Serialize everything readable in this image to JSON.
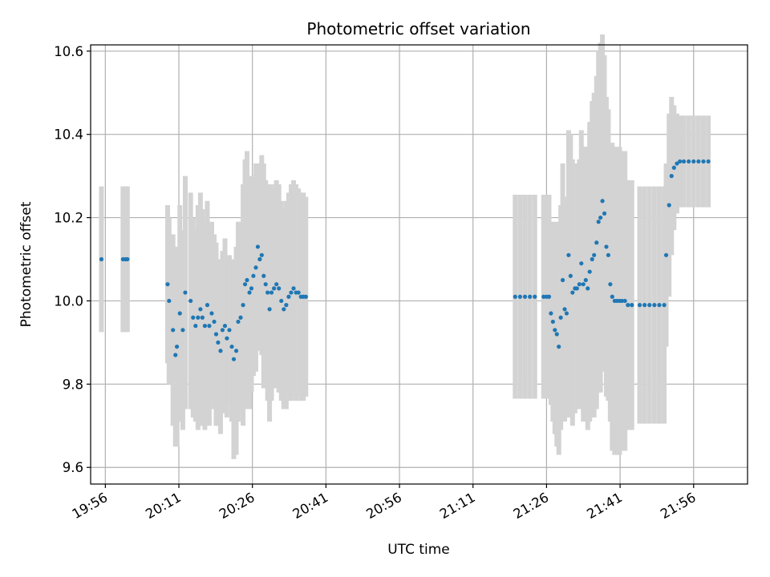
{
  "chart_data": {
    "type": "scatter",
    "title": "Photometric offset variation",
    "xlabel": "UTC time",
    "ylabel": "Photometric offset",
    "x_unit": "minutes after 19:56 UTC",
    "xlim": [
      "19:53",
      "22:07"
    ],
    "ylim": [
      9.56,
      10.615
    ],
    "grid": true,
    "x_ticks": [
      "19:56",
      "20:11",
      "20:26",
      "20:41",
      "20:56",
      "21:11",
      "21:26",
      "21:41",
      "21:56"
    ],
    "y_ticks": [
      "9.6",
      "9.8",
      "10.0",
      "10.2",
      "10.4",
      "10.6"
    ],
    "colors": {
      "points": "#1f77b4",
      "error_bars": "#d3d3d3",
      "grid": "#b0b0b0"
    },
    "points": [
      [
        -0.8,
        10.1,
        0.175
      ],
      [
        3.6,
        10.1,
        0.175
      ],
      [
        4.1,
        10.1,
        0.175
      ],
      [
        4.5,
        10.1,
        0.175
      ],
      [
        12.7,
        10.04,
        0.19
      ],
      [
        13.0,
        10.0,
        0.2
      ],
      [
        13.8,
        9.93,
        0.23
      ],
      [
        14.3,
        9.87,
        0.22
      ],
      [
        14.6,
        9.89,
        0.24
      ],
      [
        15.2,
        9.97,
        0.26
      ],
      [
        15.8,
        9.93,
        0.24
      ],
      [
        16.3,
        10.02,
        0.28
      ],
      [
        17.4,
        10.0,
        0.26
      ],
      [
        17.9,
        9.96,
        0.24
      ],
      [
        18.4,
        9.94,
        0.23
      ],
      [
        18.9,
        9.96,
        0.27
      ],
      [
        19.4,
        9.98,
        0.28
      ],
      [
        19.8,
        9.96,
        0.26
      ],
      [
        20.3,
        9.94,
        0.25
      ],
      [
        20.8,
        9.99,
        0.25
      ],
      [
        21.2,
        9.94,
        0.24
      ],
      [
        21.7,
        9.97,
        0.22
      ],
      [
        22.2,
        9.95,
        0.21
      ],
      [
        22.6,
        9.92,
        0.22
      ],
      [
        23.0,
        9.9,
        0.2
      ],
      [
        23.5,
        9.88,
        0.2
      ],
      [
        23.9,
        9.93,
        0.19
      ],
      [
        24.4,
        9.94,
        0.21
      ],
      [
        24.8,
        9.91,
        0.19
      ],
      [
        25.3,
        9.93,
        0.18
      ],
      [
        25.8,
        9.89,
        0.18
      ],
      [
        26.2,
        9.86,
        0.24
      ],
      [
        26.7,
        9.88,
        0.25
      ],
      [
        27.1,
        9.95,
        0.24
      ],
      [
        27.6,
        9.96,
        0.23
      ],
      [
        28.1,
        9.99,
        0.29
      ],
      [
        28.5,
        10.04,
        0.3
      ],
      [
        28.9,
        10.05,
        0.31
      ],
      [
        29.4,
        10.02,
        0.28
      ],
      [
        29.8,
        10.03,
        0.25
      ],
      [
        30.2,
        10.06,
        0.24
      ],
      [
        30.7,
        10.08,
        0.25
      ],
      [
        31.1,
        10.13,
        0.2
      ],
      [
        31.5,
        10.1,
        0.22
      ],
      [
        31.9,
        10.11,
        0.24
      ],
      [
        32.3,
        10.06,
        0.27
      ],
      [
        32.7,
        10.04,
        0.25
      ],
      [
        33.1,
        10.02,
        0.26
      ],
      [
        33.5,
        9.98,
        0.27
      ],
      [
        33.9,
        10.02,
        0.26
      ],
      [
        34.4,
        10.03,
        0.24
      ],
      [
        34.9,
        10.04,
        0.25
      ],
      [
        35.4,
        10.03,
        0.25
      ],
      [
        35.9,
        10.0,
        0.24
      ],
      [
        36.4,
        9.98,
        0.24
      ],
      [
        36.9,
        9.99,
        0.25
      ],
      [
        37.4,
        10.01,
        0.25
      ],
      [
        37.9,
        10.02,
        0.26
      ],
      [
        38.4,
        10.03,
        0.26
      ],
      [
        38.9,
        10.02,
        0.26
      ],
      [
        39.4,
        10.02,
        0.25
      ],
      [
        39.9,
        10.01,
        0.25
      ],
      [
        40.4,
        10.01,
        0.25
      ],
      [
        40.9,
        10.01,
        0.24
      ],
      [
        83.6,
        10.01,
        0.245
      ],
      [
        84.6,
        10.01,
        0.245
      ],
      [
        85.6,
        10.01,
        0.245
      ],
      [
        86.6,
        10.01,
        0.245
      ],
      [
        87.6,
        10.01,
        0.245
      ],
      [
        89.4,
        10.01,
        0.245
      ],
      [
        90.0,
        10.01,
        0.245
      ],
      [
        90.5,
        10.01,
        0.245
      ],
      [
        90.9,
        9.97,
        0.22
      ],
      [
        91.3,
        9.95,
        0.24
      ],
      [
        91.7,
        9.93,
        0.25
      ],
      [
        92.1,
        9.92,
        0.27
      ],
      [
        92.5,
        9.89,
        0.26
      ],
      [
        92.9,
        9.96,
        0.27
      ],
      [
        93.3,
        10.05,
        0.28
      ],
      [
        93.7,
        9.98,
        0.27
      ],
      [
        94.1,
        9.97,
        0.25
      ],
      [
        94.5,
        10.11,
        0.3
      ],
      [
        94.9,
        10.06,
        0.34
      ],
      [
        95.3,
        10.02,
        0.32
      ],
      [
        95.8,
        10.03,
        0.3
      ],
      [
        96.2,
        10.03,
        0.29
      ],
      [
        96.7,
        10.04,
        0.3
      ],
      [
        97.1,
        10.09,
        0.32
      ],
      [
        97.5,
        10.04,
        0.33
      ],
      [
        98.0,
        10.05,
        0.32
      ],
      [
        98.4,
        10.03,
        0.34
      ],
      [
        98.8,
        10.07,
        0.36
      ],
      [
        99.3,
        10.1,
        0.38
      ],
      [
        99.7,
        10.11,
        0.39
      ],
      [
        100.2,
        10.14,
        0.4
      ],
      [
        100.6,
        10.19,
        0.41
      ],
      [
        101.0,
        10.2,
        0.42
      ],
      [
        101.4,
        10.24,
        0.4
      ],
      [
        101.8,
        10.21,
        0.38
      ],
      [
        102.2,
        10.13,
        0.36
      ],
      [
        102.6,
        10.11,
        0.35
      ],
      [
        103.0,
        10.04,
        0.33
      ],
      [
        103.4,
        10.01,
        0.37
      ],
      [
        103.9,
        10.0,
        0.37
      ],
      [
        104.4,
        10.0,
        0.37
      ],
      [
        104.9,
        10.0,
        0.37
      ],
      [
        105.4,
        10.0,
        0.36
      ],
      [
        106.0,
        10.0,
        0.36
      ],
      [
        106.6,
        9.99,
        0.3
      ],
      [
        107.4,
        9.99,
        0.3
      ],
      [
        109.0,
        9.99,
        0.285
      ],
      [
        110.0,
        9.99,
        0.285
      ],
      [
        111.0,
        9.99,
        0.285
      ],
      [
        112.0,
        9.99,
        0.285
      ],
      [
        113.0,
        9.99,
        0.285
      ],
      [
        114.0,
        9.99,
        0.285
      ],
      [
        114.4,
        10.11,
        0.22
      ],
      [
        115.0,
        10.23,
        0.22
      ],
      [
        115.5,
        10.3,
        0.19
      ],
      [
        116.0,
        10.32,
        0.15
      ],
      [
        116.6,
        10.33,
        0.12
      ],
      [
        117.2,
        10.335,
        0.11
      ],
      [
        118.0,
        10.335,
        0.11
      ],
      [
        119.0,
        10.335,
        0.11
      ],
      [
        120.0,
        10.335,
        0.11
      ],
      [
        121.0,
        10.335,
        0.11
      ],
      [
        122.0,
        10.335,
        0.11
      ],
      [
        123.0,
        10.335,
        0.11
      ]
    ]
  }
}
